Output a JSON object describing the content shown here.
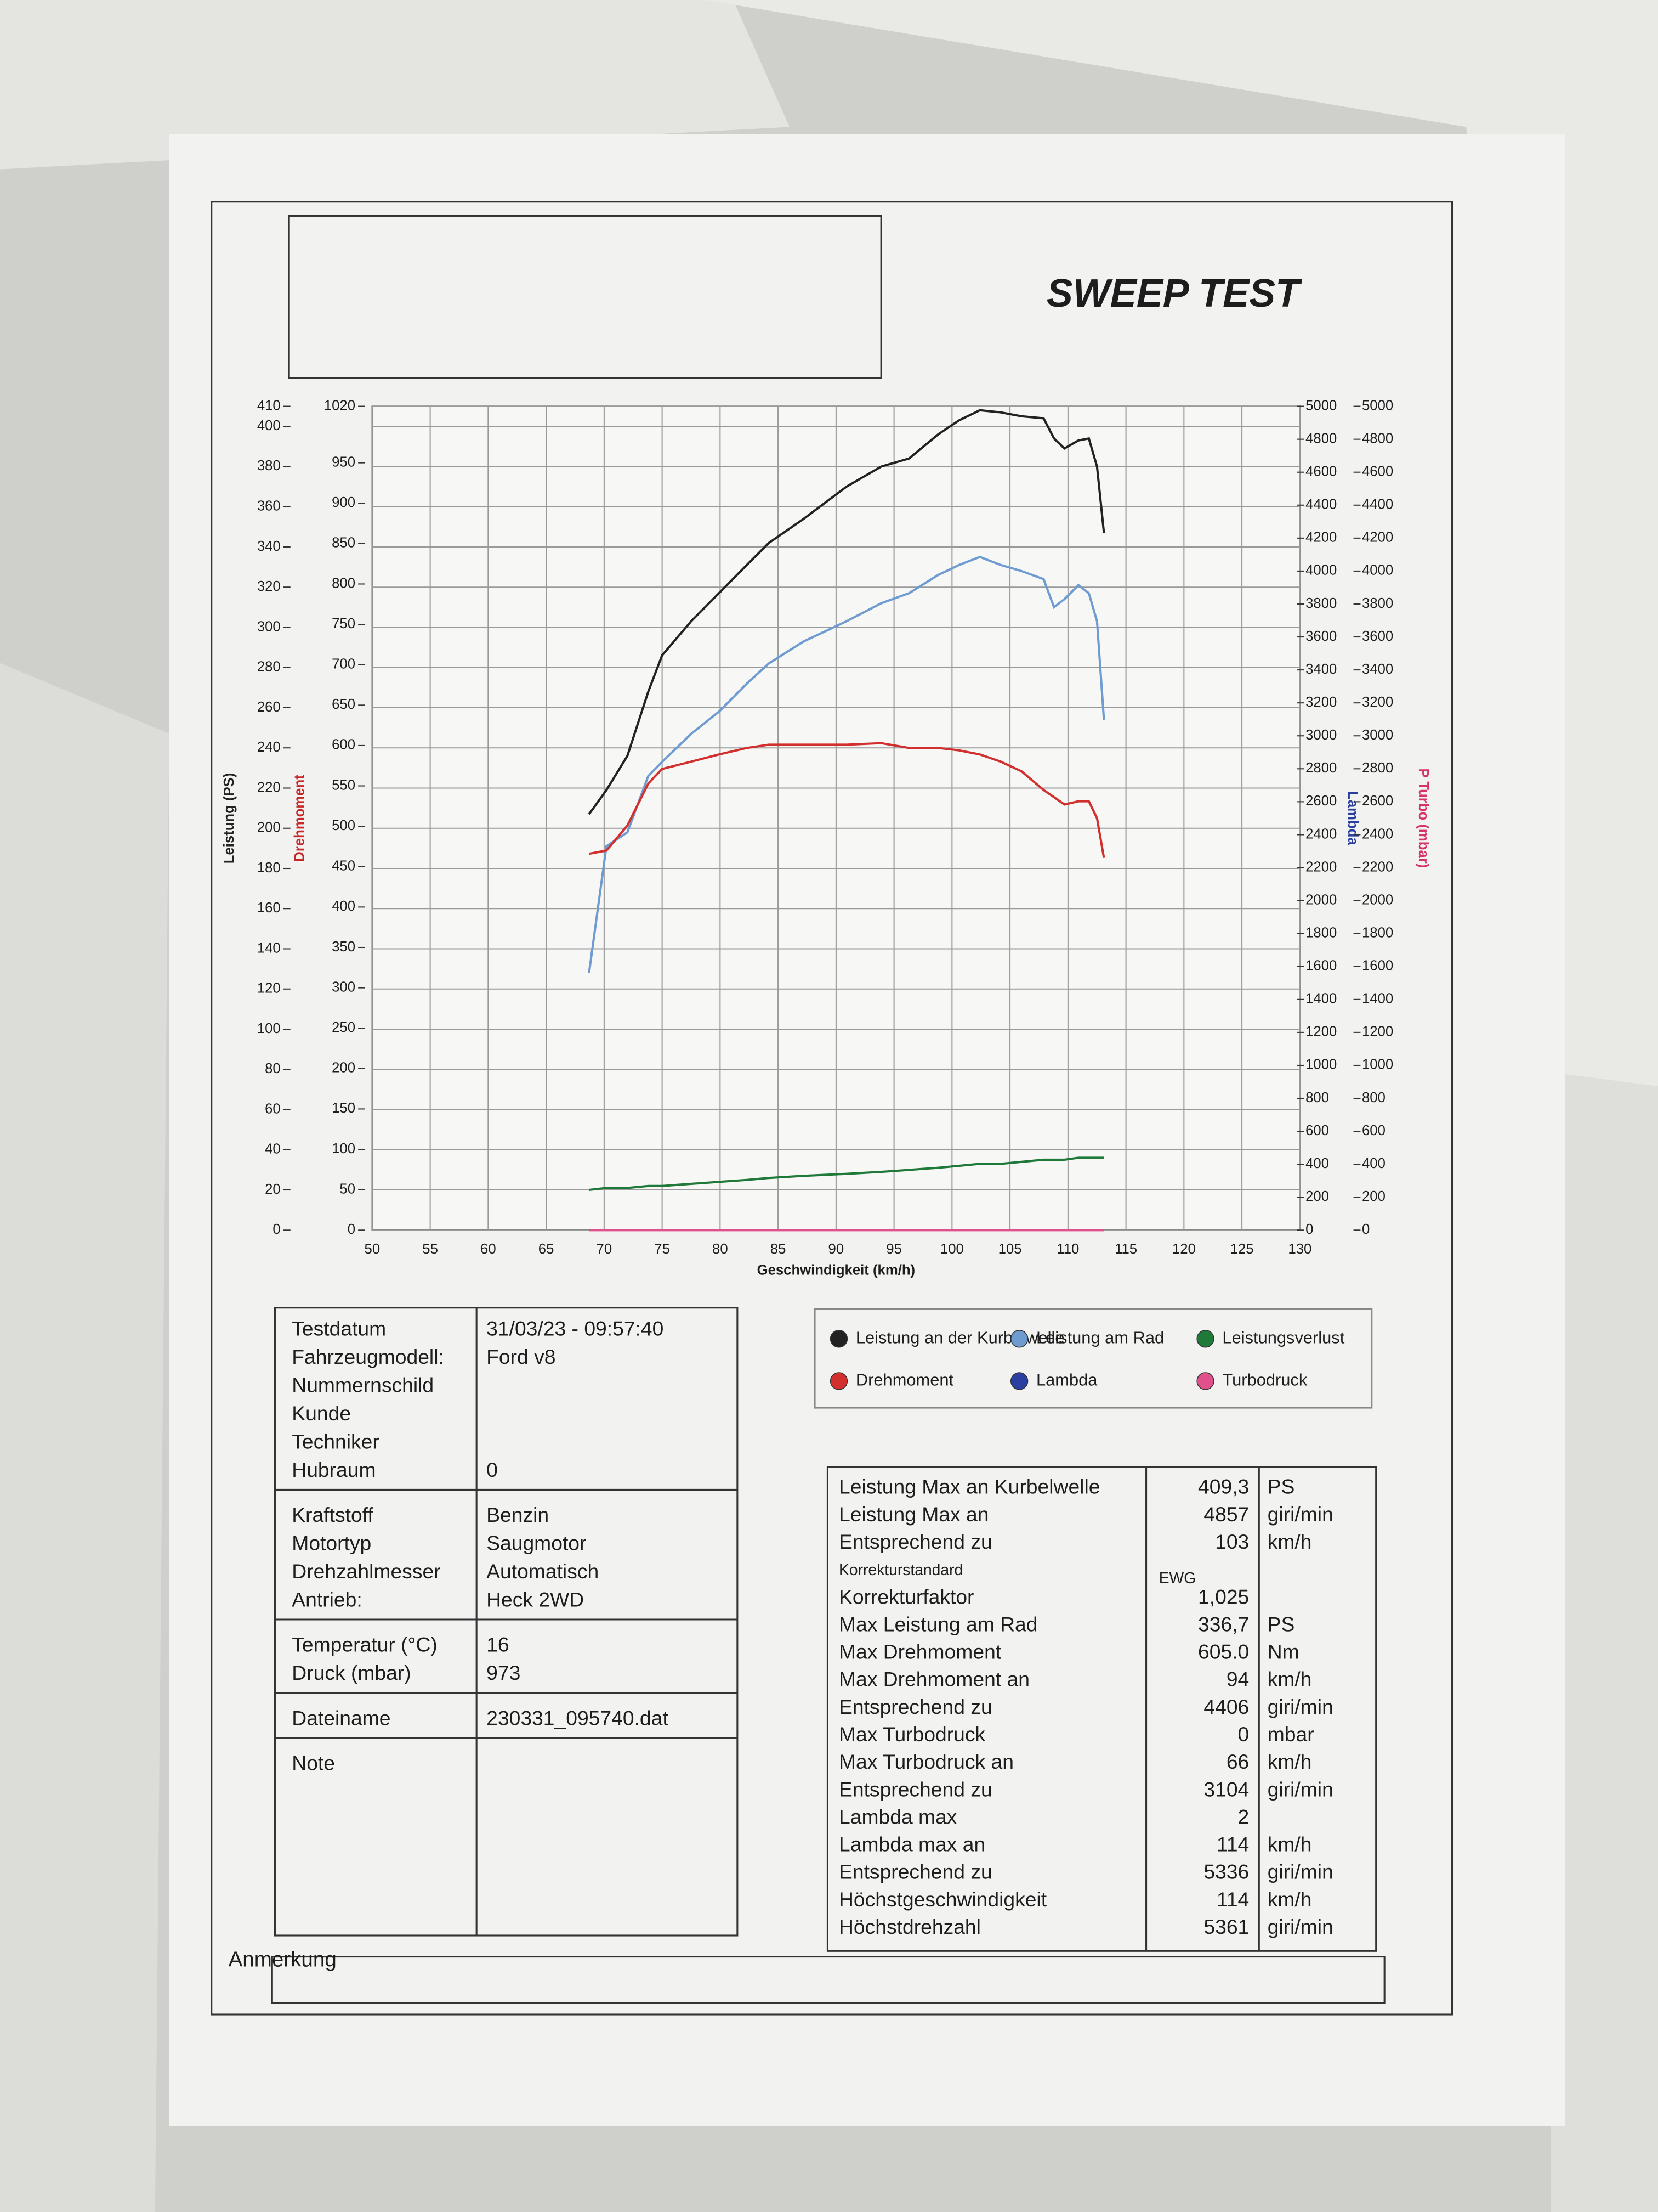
{
  "title": "SWEEP TEST",
  "chart_data": {
    "type": "line",
    "xlabel": "Geschwindigkeit (km/h)",
    "xlim": [
      50,
      130
    ],
    "xticks": [
      50,
      55,
      60,
      65,
      70,
      75,
      80,
      85,
      90,
      95,
      100,
      105,
      110,
      115,
      120,
      125,
      130
    ],
    "ylabel": "Leistung (PS)",
    "ylabel_color": "#222222",
    "ylim": [
      0,
      410
    ],
    "yticks": [
      0,
      20,
      40,
      60,
      80,
      100,
      120,
      140,
      160,
      180,
      200,
      220,
      240,
      260,
      280,
      300,
      320,
      340,
      360,
      380,
      400,
      410
    ],
    "y2label": "Drehmoment",
    "y2label_color": "#c62828",
    "y2lim": [
      0,
      1020
    ],
    "y2ticks": [
      0,
      50,
      100,
      150,
      200,
      250,
      300,
      350,
      400,
      450,
      500,
      550,
      600,
      650,
      700,
      750,
      800,
      850,
      900,
      950,
      1020
    ],
    "y3label": "Lambda",
    "y3label_color": "#2a3fa0",
    "y3lim": [
      0,
      5000
    ],
    "y3ticks": [
      0,
      200,
      400,
      600,
      800,
      1000,
      1200,
      1400,
      1600,
      1800,
      2000,
      2200,
      2400,
      2600,
      2800,
      3000,
      3200,
      3400,
      3600,
      3800,
      4000,
      4200,
      4400,
      4600,
      4800,
      5000
    ],
    "y4label": "P Turbo (mbar)",
    "y4label_color": "#d6336c",
    "y4lim": [
      0,
      5000
    ],
    "y4ticks": [
      0,
      200,
      400,
      600,
      800,
      1000,
      1200,
      1400,
      1600,
      1800,
      2000,
      2200,
      2400,
      2600,
      2800,
      3000,
      3200,
      3400,
      3600,
      3800,
      4000,
      4200,
      4400,
      4600,
      4800,
      5000
    ],
    "grid": true,
    "x": [
      68.7,
      70.2,
      72.0,
      73.8,
      75.0,
      77.5,
      79.9,
      82.3,
      84.2,
      87.2,
      90.9,
      93.9,
      96.3,
      98.8,
      100.6,
      102.4,
      104.2,
      106.0,
      107.9,
      108.8,
      109.7,
      110.9,
      111.8,
      112.5,
      113.1
    ],
    "series": [
      {
        "name": "Leistung an der Kurbelwelle",
        "color": "#222222",
        "axis": "y",
        "values": [
          207,
          219,
          236,
          268,
          286,
          303,
          317,
          331,
          342,
          354,
          370,
          380,
          384,
          396,
          403,
          408,
          407,
          405,
          404,
          394,
          389,
          393,
          394,
          380,
          347
        ]
      },
      {
        "name": "Leistung am Rad",
        "color": "#6e9bd0",
        "axis": "y",
        "values": [
          128,
          191,
          198,
          226,
          233,
          247,
          258,
          272,
          282,
          293,
          303,
          312,
          317,
          326,
          331,
          335,
          331,
          328,
          324,
          310,
          314,
          321,
          317,
          303,
          254
        ]
      },
      {
        "name": "Leistungsverlust",
        "color": "#1f7a3a",
        "axis": "y",
        "values": [
          20,
          21,
          21,
          22,
          22,
          23,
          24,
          25,
          26,
          27,
          28,
          29,
          30,
          31,
          32,
          33,
          33,
          34,
          35,
          35,
          35,
          36,
          36,
          36,
          36
        ]
      },
      {
        "name": "Drehmoment",
        "color": "#d2302e",
        "axis": "y2",
        "values": [
          466,
          470,
          501,
          553,
          571,
          580,
          589,
          597,
          601,
          601,
          601,
          603,
          597,
          597,
          594,
          589,
          580,
          568,
          545,
          536,
          527,
          531,
          531,
          510,
          461
        ]
      },
      {
        "name": "Lambda",
        "color": "#2a3fa0",
        "axis": "y3",
        "values": [
          null,
          null,
          null,
          null,
          null,
          null,
          null,
          null,
          null,
          null,
          null,
          null,
          null,
          null,
          null,
          null,
          null,
          null,
          null,
          null,
          null,
          null,
          null,
          null,
          null
        ]
      },
      {
        "name": "Turbodruck",
        "color": "#e0508a",
        "axis": "y4",
        "values": [
          0,
          0,
          0,
          0,
          0,
          0,
          0,
          0,
          0,
          0,
          0,
          0,
          0,
          0,
          0,
          0,
          0,
          0,
          0,
          0,
          0,
          0,
          0,
          0,
          0
        ]
      }
    ]
  },
  "info_table": [
    [
      [
        "Testdatum",
        "31/03/23 - 09:57:40"
      ],
      [
        "Fahrzeugmodell:",
        "Ford v8"
      ],
      [
        "Nummernschild"
      ],
      [
        "Kunde"
      ],
      [
        "Techniker"
      ],
      [
        "Hubraum",
        "0"
      ]
    ],
    [
      [
        "Kraftstoff",
        "Benzin"
      ],
      [
        "Motortyp",
        "Saugmotor"
      ],
      [
        "Drehzahlmesser",
        "Automatisch"
      ],
      [
        "Antrieb:",
        "Heck 2WD"
      ]
    ],
    [
      [
        "Temperatur (°C)",
        "16"
      ],
      [
        "Druck (mbar)",
        "973"
      ]
    ],
    [
      [
        "Dateiname",
        "230331_095740.dat"
      ]
    ],
    [
      [
        "Note"
      ]
    ]
  ],
  "stats_table": [
    {
      "label": "Leistung Max an Kurbelwelle",
      "value": "409,3",
      "unit": "PS"
    },
    {
      "label": "Leistung Max an",
      "value": "4857",
      "unit": "giri/min"
    },
    {
      "label": "Entsprechend zu",
      "value": "103",
      "unit": "km/h"
    },
    {
      "label": "Korrekturstandard",
      "standard": "EWG"
    },
    {
      "label": "Korrekturfaktor",
      "value": "1,025"
    },
    {
      "label": "Max Leistung am Rad",
      "value": "336,7",
      "unit": "PS"
    },
    {
      "label": "Max Drehmoment",
      "value": "605.0",
      "unit": "Nm"
    },
    {
      "label": "Max Drehmoment an",
      "value": "94",
      "unit": "km/h"
    },
    {
      "label": "Entsprechend zu",
      "value": "4406",
      "unit": "giri/min"
    },
    {
      "label": "Max Turbodruck",
      "value": "0",
      "unit": "mbar"
    },
    {
      "label": "Max Turbodruck an",
      "value": "66",
      "unit": "km/h"
    },
    {
      "label": "Entsprechend zu",
      "value": "3104",
      "unit": "giri/min"
    },
    {
      "label": "Lambda max",
      "value": "2"
    },
    {
      "label": "Lambda max an",
      "value": "114",
      "unit": "km/h"
    },
    {
      "label": "Entsprechend zu",
      "value": "5336",
      "unit": "giri/min"
    },
    {
      "label": "Höchstgeschwindigkeit",
      "value": "114",
      "unit": "km/h"
    },
    {
      "label": "Höchstdrehzahl",
      "value": "5361",
      "unit": "giri/min"
    }
  ],
  "remark_label": "Anmerkung"
}
